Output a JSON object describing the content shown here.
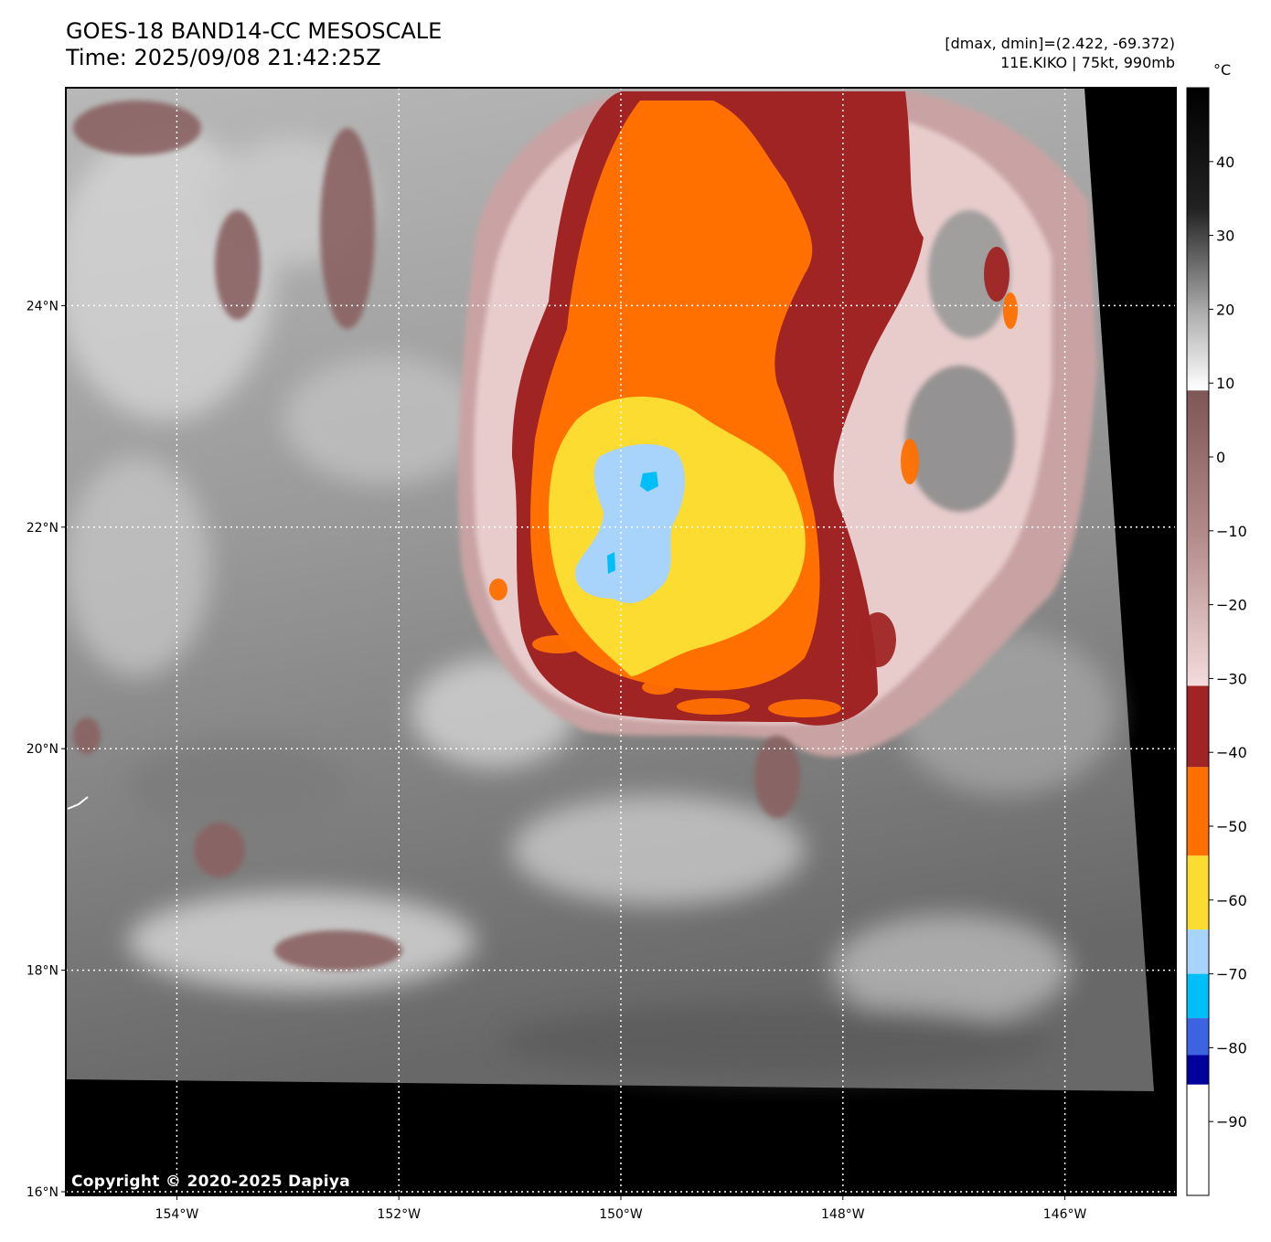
{
  "header": {
    "title_line1": "GOES-18 BAND14-CC MESOSCALE",
    "title_line2": "Time: 2025/09/08 21:42:25Z",
    "range_text": "[dmax, dmin]=(2.422, -69.372)",
    "storm_text": "11E.KIKO | 75kt, 990mb"
  },
  "colorbar": {
    "unit": "°C",
    "ticks": [
      "40",
      "30",
      "20",
      "10",
      "0",
      "−10",
      "−20",
      "−30",
      "−40",
      "−50",
      "−60",
      "−70",
      "−80",
      "−90"
    ],
    "tick_values": [
      40,
      30,
      20,
      10,
      0,
      -10,
      -20,
      -30,
      -40,
      -50,
      -60,
      -70,
      -80,
      -90
    ],
    "range": [
      -100,
      50
    ],
    "bands": [
      {
        "from": 50,
        "to": 9,
        "kind": "gray"
      },
      {
        "from": 9,
        "to": -31,
        "kind": "brown-to-pink"
      },
      {
        "from": -31,
        "to": -42,
        "color": "#a02424"
      },
      {
        "from": -42,
        "to": -54,
        "color": "#ff7000"
      },
      {
        "from": -54,
        "to": -64,
        "color": "#fcdc30"
      },
      {
        "from": -64,
        "to": -70,
        "color": "#a8d4fc"
      },
      {
        "from": -70,
        "to": -76,
        "color": "#00bef8"
      },
      {
        "from": -76,
        "to": -81,
        "color": "#3c64e0"
      },
      {
        "from": -81,
        "to": -85,
        "color": "#00009c"
      },
      {
        "from": -85,
        "to": -100,
        "color": "#ffffff"
      }
    ]
  },
  "axes": {
    "lat_labels": [
      "24°N",
      "22°N",
      "20°N",
      "18°N",
      "16°N"
    ],
    "lat_values": [
      24,
      22,
      20,
      18,
      16
    ],
    "lon_labels": [
      "154°W",
      "152°W",
      "150°W",
      "148°W",
      "146°W"
    ],
    "lon_values": [
      -154,
      -152,
      -150,
      -148,
      -146
    ],
    "lat_range": [
      16,
      26
    ],
    "lon_range": [
      -155,
      -145
    ]
  },
  "footer": {
    "copyright": "Copyright © 2020-2025 Dapiya"
  }
}
